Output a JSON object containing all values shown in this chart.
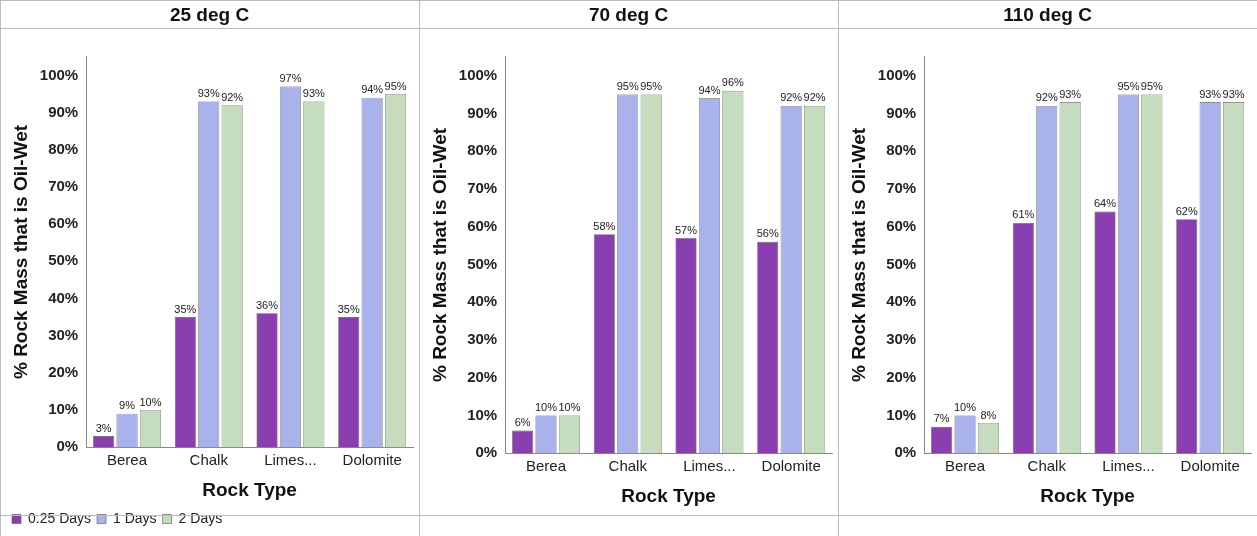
{
  "chart_data": [
    {
      "type": "bar",
      "title": "25 deg C",
      "xlabel": "Rock Type",
      "ylabel": "% Rock Mass that is Oil-Wet",
      "categories": [
        "Berea",
        "Chalk",
        "Limes...",
        "Dolomite"
      ],
      "ylim": [
        0,
        105
      ],
      "yticks": [
        {
          "value": 0,
          "label": "0%"
        },
        {
          "value": 10,
          "label": "10%"
        },
        {
          "value": 20,
          "label": "20%"
        },
        {
          "value": 30,
          "label": "30%"
        },
        {
          "value": 40,
          "label": "40%"
        },
        {
          "value": 50,
          "label": "50%"
        },
        {
          "value": 60,
          "label": "60%"
        },
        {
          "value": 70,
          "label": "70%"
        },
        {
          "value": 80,
          "label": "80%"
        },
        {
          "value": 90,
          "label": "90%"
        },
        {
          "value": 100,
          "label": "100%"
        }
      ],
      "grid": false,
      "legend": "bottom",
      "series": [
        {
          "name": "0.25 Days",
          "color": "#8a3fb0",
          "values": [
            3,
            35,
            36,
            35
          ],
          "value_labels": [
            "3%",
            "35%",
            "36%",
            "35%"
          ]
        },
        {
          "name": "1 Days",
          "color": "#aab2ec",
          "values": [
            9,
            93,
            97,
            94
          ],
          "value_labels": [
            "9%",
            "93%",
            "97%",
            "94%"
          ]
        },
        {
          "name": "2 Days",
          "color": "#c5dcbf",
          "values": [
            10,
            92,
            93,
            95
          ],
          "value_labels": [
            "10%",
            "92%",
            "93%",
            "95%"
          ]
        }
      ]
    },
    {
      "type": "bar",
      "title": "70 deg C",
      "xlabel": "Rock Type",
      "ylabel": "% Rock Mass that is Oil-Wet",
      "categories": [
        "Berea",
        "Chalk",
        "Limes...",
        "Dolomite"
      ],
      "ylim": [
        0,
        105
      ],
      "yticks": [
        {
          "value": 0,
          "label": "0%"
        },
        {
          "value": 10,
          "label": "10%"
        },
        {
          "value": 20,
          "label": "20%"
        },
        {
          "value": 30,
          "label": "30%"
        },
        {
          "value": 40,
          "label": "40%"
        },
        {
          "value": 50,
          "label": "50%"
        },
        {
          "value": 60,
          "label": "60%"
        },
        {
          "value": 70,
          "label": "70%"
        },
        {
          "value": 80,
          "label": "80%"
        },
        {
          "value": 90,
          "label": "90%"
        },
        {
          "value": 100,
          "label": "100%"
        }
      ],
      "grid": false,
      "series": [
        {
          "color": "#8a3fb0",
          "values": [
            6,
            58,
            57,
            56
          ],
          "value_labels": [
            "6%",
            "58%",
            "57%",
            "56%"
          ]
        },
        {
          "color": "#aab2ec",
          "values": [
            10,
            95,
            94,
            92
          ],
          "value_labels": [
            "10%",
            "95%",
            "94%",
            "92%"
          ]
        },
        {
          "color": "#c5dcbf",
          "values": [
            10,
            95,
            96,
            92
          ],
          "value_labels": [
            "10%",
            "95%",
            "96%",
            "92%"
          ]
        }
      ]
    },
    {
      "type": "bar",
      "title": "110 deg C",
      "xlabel": "Rock Type",
      "ylabel": "% Rock Mass that is Oil-Wet",
      "categories": [
        "Berea",
        "Chalk",
        "Limes...",
        "Dolomite"
      ],
      "ylim": [
        0,
        105
      ],
      "yticks": [
        {
          "value": 0,
          "label": "0%"
        },
        {
          "value": 10,
          "label": "10%"
        },
        {
          "value": 20,
          "label": "20%"
        },
        {
          "value": 30,
          "label": "30%"
        },
        {
          "value": 40,
          "label": "40%"
        },
        {
          "value": 50,
          "label": "50%"
        },
        {
          "value": 60,
          "label": "60%"
        },
        {
          "value": 70,
          "label": "70%"
        },
        {
          "value": 80,
          "label": "80%"
        },
        {
          "value": 90,
          "label": "90%"
        },
        {
          "value": 100,
          "label": "100%"
        }
      ],
      "grid": false,
      "series": [
        {
          "color": "#8a3fb0",
          "values": [
            7,
            61,
            64,
            62
          ],
          "value_labels": [
            "7%",
            "61%",
            "64%",
            "62%"
          ]
        },
        {
          "color": "#aab2ec",
          "values": [
            10,
            92,
            95,
            93
          ],
          "value_labels": [
            "10%",
            "92%",
            "95%",
            "93%"
          ]
        },
        {
          "color": "#c5dcbf",
          "values": [
            8,
            93,
            95,
            93
          ],
          "value_labels": [
            "8%",
            "93%",
            "95%",
            "93%"
          ]
        }
      ]
    }
  ]
}
